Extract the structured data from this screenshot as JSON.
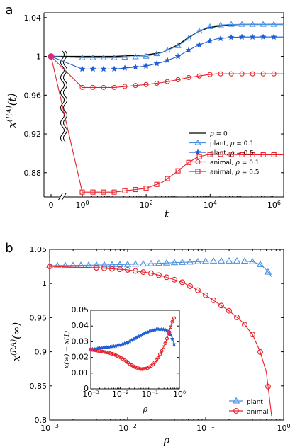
{
  "chart_data": [
    {
      "panel_label": "a",
      "type": "line",
      "xlabel": "t",
      "ylabel": "x(P,A)(t)",
      "ylabel_parts": {
        "base": "x",
        "sup": "(P,A)",
        "arg": "(t)"
      },
      "x_scale": "log",
      "x_break": true,
      "xlim": [
        0,
        2000000
      ],
      "ylim": [
        0.855,
        1.045
      ],
      "x_ticks": [
        {
          "value": 0,
          "label": "0"
        },
        {
          "value": 1,
          "base": "10",
          "exp": "0"
        },
        {
          "value": 100,
          "base": "10",
          "exp": "2"
        },
        {
          "value": 10000,
          "base": "10",
          "exp": "4"
        },
        {
          "value": 1000000,
          "base": "10",
          "exp": "6"
        }
      ],
      "y_ticks": [
        "0.88",
        "0.92",
        "0.96",
        "1",
        "1.04"
      ],
      "legend": {
        "placement": "right",
        "entries": [
          {
            "prefix": "",
            "var": "ρ",
            "suffix": " = 0"
          },
          {
            "prefix": "plant, ",
            "var": "ρ",
            "suffix": " = 0.1"
          },
          {
            "prefix": "plant, ",
            "var": "ρ",
            "suffix": " = 0.5"
          },
          {
            "prefix": "animal, ",
            "var": "ρ",
            "suffix": " = 0.1"
          },
          {
            "prefix": "animal, ",
            "var": "ρ",
            "suffix": " = 0.5"
          }
        ]
      },
      "series": [
        {
          "name": "ρ = 0",
          "color": "#000000",
          "marker": "none",
          "initial": 1.0,
          "log_x": [
            0,
            1,
            2,
            2.5,
            3,
            3.3,
            3.6,
            3.9,
            4.2,
            4.6,
            5,
            5.5,
            6,
            6.3
          ],
          "y": [
            1.0,
            1.0,
            1.0015,
            1.004,
            1.012,
            1.019,
            1.025,
            1.029,
            1.031,
            1.0325,
            1.033,
            1.033,
            1.033,
            1.033
          ]
        },
        {
          "name": "plant, ρ = 0.1",
          "color": "#4a8fe0",
          "marker": "triangle",
          "initial": 1.0,
          "log_x": [
            0,
            1,
            2,
            2.5,
            3,
            3.3,
            3.6,
            3.9,
            4.2,
            4.6,
            5,
            5.5,
            6,
            6.3
          ],
          "y": [
            0.9985,
            0.9985,
            1.0,
            1.004,
            1.011,
            1.018,
            1.025,
            1.03,
            1.032,
            1.033,
            1.033,
            1.033,
            1.033,
            1.033
          ]
        },
        {
          "name": "plant, ρ = 0.5",
          "color": "#1f5fd6",
          "marker": "star",
          "initial": 1.0,
          "log_x": [
            0,
            1,
            2,
            2.5,
            3,
            3.3,
            3.6,
            3.9,
            4.2,
            4.6,
            5,
            5.5,
            6,
            6.3
          ],
          "y": [
            0.987,
            0.987,
            0.99,
            0.994,
            1.0,
            1.006,
            1.011,
            1.015,
            1.018,
            1.0195,
            1.02,
            1.02,
            1.02,
            1.02
          ]
        },
        {
          "name": "animal, ρ = 0.1",
          "color": "#e8202a",
          "marker": "circle",
          "initial": 1.0,
          "log_x": [
            0,
            1,
            2,
            2.5,
            3,
            3.3,
            3.6,
            3.9,
            4.2,
            4.6,
            5,
            5.5,
            6,
            6.3
          ],
          "y": [
            0.968,
            0.968,
            0.971,
            0.973,
            0.976,
            0.978,
            0.9795,
            0.981,
            0.982,
            0.982,
            0.982,
            0.982,
            0.982,
            0.982
          ]
        },
        {
          "name": "animal, ρ = 0.5",
          "color": "#e8202a",
          "marker": "square",
          "initial": 1.0,
          "log_x": [
            0,
            1,
            2,
            2.5,
            3,
            3.3,
            3.6,
            3.9,
            4.2,
            4.6,
            5,
            5.5,
            6,
            6.3
          ],
          "y": [
            0.86,
            0.86,
            0.864,
            0.87,
            0.882,
            0.89,
            0.896,
            0.8985,
            0.899,
            0.899,
            0.8985,
            0.8985,
            0.8985,
            0.8985
          ]
        }
      ]
    },
    {
      "panel_label": "b",
      "type": "line",
      "xlabel": "ρ",
      "ylabel": "x(P,A)(∞)",
      "ylabel_parts": {
        "base": "x",
        "sup": "(P,A)",
        "arg": "(∞)"
      },
      "x_scale": "log",
      "xlim": [
        0.001,
        1
      ],
      "ylim": [
        0.8,
        1.05
      ],
      "x_ticks": [
        {
          "value": 0.001,
          "base": "10",
          "exp": "−3"
        },
        {
          "value": 0.01,
          "base": "10",
          "exp": "−2"
        },
        {
          "value": 0.1,
          "base": "10",
          "exp": "−1"
        },
        {
          "value": 1,
          "base": "10",
          "exp": "0"
        }
      ],
      "y_ticks": [
        "0.8",
        "0.85",
        "0.9",
        "0.95",
        "1",
        "1.05"
      ],
      "legend": {
        "placement": "bottom-right",
        "entries": [
          "plant",
          "animal"
        ]
      },
      "series": [
        {
          "name": "plant",
          "color": "#4a8fe0",
          "marker": "triangle",
          "rho": [
            0.001,
            0.004,
            0.01,
            0.02,
            0.03,
            0.05,
            0.08,
            0.12,
            0.2,
            0.3,
            0.4,
            0.5,
            0.6,
            0.7
          ],
          "y": [
            1.026,
            1.027,
            1.028,
            1.029,
            1.03,
            1.031,
            1.032,
            1.033,
            1.033,
            1.033,
            1.032,
            1.028,
            1.02,
            1.01
          ]
        },
        {
          "name": "animal",
          "color": "#e8202a",
          "marker": "circle",
          "rho": [
            0.001,
            0.004,
            0.01,
            0.02,
            0.03,
            0.05,
            0.08,
            0.12,
            0.2,
            0.3,
            0.4,
            0.5,
            0.6,
            0.7
          ],
          "y": [
            1.025,
            1.023,
            1.02,
            1.015,
            1.01,
            1.002,
            0.99,
            0.977,
            0.96,
            0.943,
            0.925,
            0.9,
            0.87,
            0.806
          ]
        }
      ],
      "inset": {
        "ylabel": "x(∞) − x(1)",
        "xlabel": "ρ",
        "x_scale": "log",
        "xlim": [
          0.001,
          1
        ],
        "ylim": [
          0,
          0.05
        ],
        "x_ticks": [
          {
            "value": 0.001,
            "base": "10",
            "exp": "−3"
          },
          {
            "value": 0.01,
            "base": "10",
            "exp": "−2"
          },
          {
            "value": 0.1,
            "base": "10",
            "exp": "−1"
          },
          {
            "value": 1,
            "base": "10",
            "exp": "0"
          }
        ],
        "y_ticks": [
          "0",
          "0.01",
          "0.02",
          "0.03",
          "0.04",
          "0.05"
        ],
        "series": [
          {
            "name": "plant",
            "color": "#1f5fd6",
            "marker": "star",
            "rho": [
              0.001,
              0.002,
              0.004,
              0.006,
              0.01,
              0.015,
              0.02,
              0.03,
              0.05,
              0.08,
              0.12,
              0.18,
              0.25,
              0.35,
              0.45,
              0.55,
              0.7
            ],
            "y": [
              0.025,
              0.026,
              0.0265,
              0.027,
              0.028,
              0.029,
              0.03,
              0.032,
              0.034,
              0.036,
              0.037,
              0.038,
              0.038,
              0.0375,
              0.036,
              0.033,
              0.027
            ]
          },
          {
            "name": "animal",
            "color": "#e8202a",
            "marker": "circle",
            "rho": [
              0.001,
              0.002,
              0.004,
              0.006,
              0.01,
              0.015,
              0.02,
              0.03,
              0.05,
              0.08,
              0.12,
              0.18,
              0.25,
              0.35,
              0.45,
              0.55,
              0.7
            ],
            "y": [
              0.025,
              0.024,
              0.023,
              0.022,
              0.02,
              0.018,
              0.016,
              0.014,
              0.0125,
              0.013,
              0.015,
              0.019,
              0.024,
              0.03,
              0.036,
              0.042,
              0.046
            ]
          }
        ]
      }
    }
  ]
}
